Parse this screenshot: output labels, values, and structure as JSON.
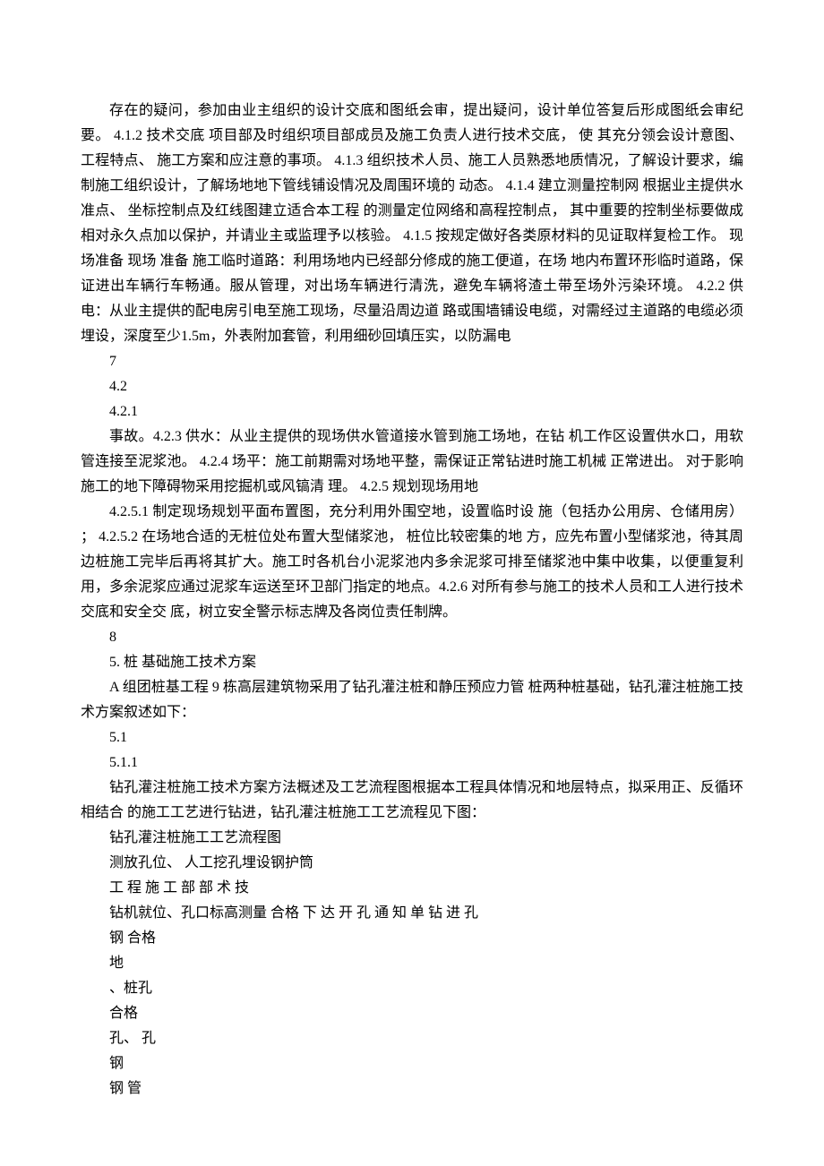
{
  "document": {
    "font_family": "SimSun",
    "font_size_pt": 12,
    "line_height": 28,
    "text_color": "#000000",
    "background_color": "#ffffff",
    "text_indent_em": 2,
    "paragraphs": [
      {
        "type": "para",
        "text": "存在的疑问，参加由业主组织的设计交底和图纸会审，提出疑问，设计单位答复后形成图纸会审纪要。 4.1.2 技术交底 项目部及时组织项目部成员及施工负责人进行技术交底， 使 其充分领会设计意图、 工程特点、 施工方案和应注意的事项。 4.1.3 组织技术人员、施工人员熟悉地质情况，了解设计要求，编 制施工组织设计，了解场地地下管线铺设情况及周围环境的 动态。 4.1.4 建立测量控制网 根据业主提供水准点、 坐标控制点及红线图建立适合本工程 的测量定位网络和高程控制点， 其中重要的控制坐标要做成 相对永久点加以保护，并请业主或监理予以核验。 4.1.5 按规定做好各类原材料的见证取样复检工作。 现场准备 现场 准备 施工临时道路：利用场地内已经部分修成的施工便道，在场 地内布置环形临时道路，保证进出车辆行车畅通。服从管理，对出场车辆进行清洗，避免车辆将渣土带至场外污染环境。 4.2.2 供电：从业主提供的配电房引电至施工现场，尽量沿周边道 路或围墙铺设电缆，对需经过主道路的电缆必须埋设，深度至少1.5m，外表附加套管，利用细砂回填压实，以防漏电"
      },
      {
        "type": "short",
        "text": "7"
      },
      {
        "type": "short",
        "text": "4.2"
      },
      {
        "type": "short",
        "text": "4.2.1"
      },
      {
        "type": "para",
        "text": "事故。4.2.3 供水：从业主提供的现场供水管道接水管到施工场地，在钻 机工作区设置供水口，用软管连接至泥浆池。 4.2.4 场平：施工前期需对场地平整，需保证正常钻进时施工机械 正常进出。 对于影响施工的地下障碍物采用挖掘机或风镐清 理。 4.2.5 规划现场用地"
      },
      {
        "type": "para",
        "text": "4.2.5.1 制定现场规划平面布置图，充分利用外围空地，设置临时设 施（包括办公用房、仓储用房） ； 4.2.5.2 在场地合适的无桩位处布置大型储浆池， 桩位比较密集的地 方，应先布置小型储浆池，待其周边桩施工完毕后再将其扩大。施工时各机台小泥浆池内多余泥浆可排至储浆池中集中收集，以便重复利用，多余泥浆应通过泥浆车运送至环卫部门指定的地点。4.2.6 对所有参与施工的技术人员和工人进行技术交底和安全交 底，树立安全警示标志牌及各岗位责任制牌。"
      },
      {
        "type": "short",
        "text": "8"
      },
      {
        "type": "short",
        "text": "5. 桩 基础施工技术方案"
      },
      {
        "type": "para",
        "text": "A 组团桩基工程 9 栋高层建筑物采用了钻孔灌注桩和静压预应力管 桩两种桩基础，钻孔灌注桩施工技术方案叙述如下："
      },
      {
        "type": "short",
        "text": "5.1"
      },
      {
        "type": "short",
        "text": "5.1.1"
      },
      {
        "type": "para",
        "text": "钻孔灌注桩施工技术方案方法概述及工艺流程图根据本工程具体情况和地层特点，拟采用正、反循环相结合 的施工工艺进行钻进，钻孔灌注桩施工工艺流程见下图："
      },
      {
        "type": "short",
        "text": "钻孔灌注桩施工工艺流程图"
      },
      {
        "type": "short",
        "text": "测放孔位、 人工挖孔埋设钢护筒"
      },
      {
        "type": "short",
        "text": "工 程 施 工 部 部 术 技"
      },
      {
        "type": "short",
        "text": "钻机就位、孔口标高测量 合格 下 达 开 孔 通 知 单 钻 进 孔"
      },
      {
        "type": "short",
        "text": "钢 合格"
      },
      {
        "type": "short",
        "text": "地"
      },
      {
        "type": "short",
        "text": "、桩孔"
      },
      {
        "type": "short",
        "text": "合格"
      },
      {
        "type": "short",
        "text": "孔、 孔"
      },
      {
        "type": "short",
        "text": "钢"
      },
      {
        "type": "short",
        "text": "钢 管"
      }
    ]
  }
}
